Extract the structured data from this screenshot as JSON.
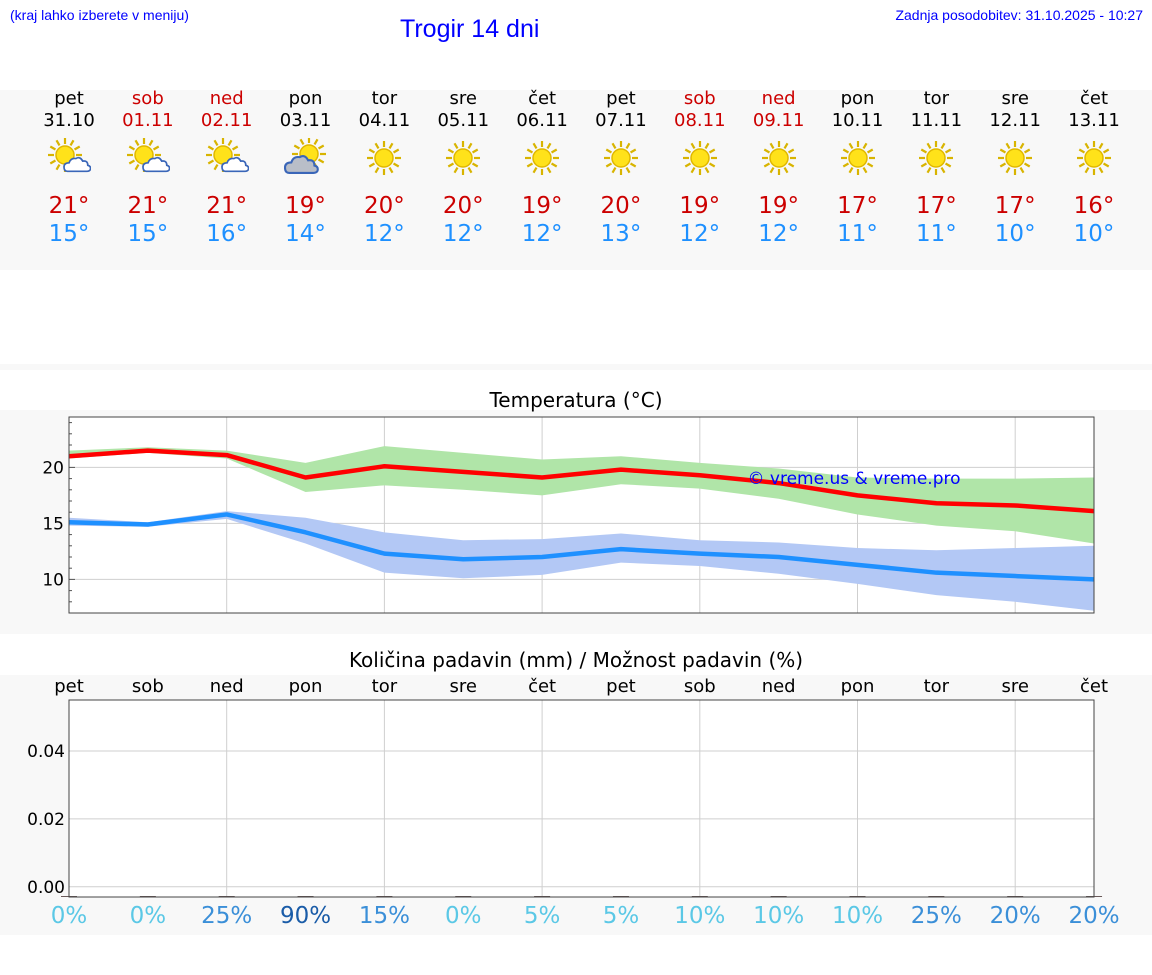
{
  "header": {
    "menu_hint": "(kraj lahko izberete v meniju)",
    "title": "Trogir 14 dni",
    "updated": "Zadnja posodobitev: 31.10.2025 - 10:27"
  },
  "days": [
    {
      "name": "pet",
      "date": "31.10",
      "weekend": false,
      "icon": "sun-cloud-icon",
      "max": "21°",
      "min": "15°"
    },
    {
      "name": "sob",
      "date": "01.11",
      "weekend": true,
      "icon": "sun-cloud-icon",
      "max": "21°",
      "min": "15°"
    },
    {
      "name": "ned",
      "date": "02.11",
      "weekend": true,
      "icon": "sun-cloud-icon",
      "max": "21°",
      "min": "16°"
    },
    {
      "name": "pon",
      "date": "03.11",
      "weekend": false,
      "icon": "cloud-sun-icon",
      "max": "19°",
      "min": "14°"
    },
    {
      "name": "tor",
      "date": "04.11",
      "weekend": false,
      "icon": "sun-icon",
      "max": "20°",
      "min": "12°"
    },
    {
      "name": "sre",
      "date": "05.11",
      "weekend": false,
      "icon": "sun-icon",
      "max": "20°",
      "min": "12°"
    },
    {
      "name": "čet",
      "date": "06.11",
      "weekend": false,
      "icon": "sun-icon",
      "max": "19°",
      "min": "12°"
    },
    {
      "name": "pet",
      "date": "07.11",
      "weekend": false,
      "icon": "sun-icon",
      "max": "20°",
      "min": "13°"
    },
    {
      "name": "sob",
      "date": "08.11",
      "weekend": true,
      "icon": "sun-icon",
      "max": "19°",
      "min": "12°"
    },
    {
      "name": "ned",
      "date": "09.11",
      "weekend": true,
      "icon": "sun-icon",
      "max": "19°",
      "min": "12°"
    },
    {
      "name": "pon",
      "date": "10.11",
      "weekend": false,
      "icon": "sun-icon",
      "max": "17°",
      "min": "11°"
    },
    {
      "name": "tor",
      "date": "11.11",
      "weekend": false,
      "icon": "sun-icon",
      "max": "17°",
      "min": "11°"
    },
    {
      "name": "sre",
      "date": "12.11",
      "weekend": false,
      "icon": "sun-icon",
      "max": "17°",
      "min": "10°"
    },
    {
      "name": "čet",
      "date": "13.11",
      "weekend": false,
      "icon": "sun-icon",
      "max": "16°",
      "min": "10°"
    }
  ],
  "colors": {
    "max_line": "#ff0000",
    "max_band": "#b0e5a8",
    "min_line": "#1e90ff",
    "min_band": "#b3c8f5",
    "weekend": "#cc0000",
    "prob_low": "#5bc8e6",
    "prob_mid": "#3b8fd8",
    "prob_high": "#1a5ca8"
  },
  "chart_data": [
    {
      "type": "line",
      "title": "Temperatura (°C)",
      "watermark": "© vreme.us & vreme.pro",
      "ylim": [
        7,
        24.5
      ],
      "yticks": [
        "10",
        "15",
        "20"
      ],
      "yticks_values": [
        10,
        15,
        20
      ],
      "x": [
        0,
        1,
        2,
        3,
        4,
        5,
        6,
        7,
        8,
        9,
        10,
        11,
        12,
        13
      ],
      "series": [
        {
          "name": "max",
          "values": [
            21.0,
            21.5,
            21.1,
            19.1,
            20.1,
            19.6,
            19.1,
            19.8,
            19.3,
            18.6,
            17.5,
            16.8,
            16.6,
            16.1
          ],
          "band_low": [
            20.8,
            21.3,
            20.8,
            17.8,
            18.4,
            18.0,
            17.5,
            18.5,
            18.1,
            17.2,
            15.8,
            14.8,
            14.3,
            13.2
          ],
          "band_high": [
            21.5,
            21.8,
            21.5,
            20.4,
            21.9,
            21.3,
            20.7,
            21.0,
            20.4,
            19.9,
            19.1,
            19.0,
            19.0,
            19.1
          ]
        },
        {
          "name": "min",
          "values": [
            15.1,
            14.9,
            15.8,
            14.2,
            12.3,
            11.8,
            12.0,
            12.7,
            12.3,
            12.0,
            11.3,
            10.6,
            10.3,
            10.0
          ],
          "band_low": [
            14.8,
            14.7,
            15.4,
            13.2,
            10.6,
            10.1,
            10.4,
            11.5,
            11.2,
            10.5,
            9.6,
            8.6,
            8.0,
            7.2
          ],
          "band_high": [
            15.5,
            15.1,
            16.1,
            15.5,
            14.2,
            13.5,
            13.6,
            14.1,
            13.5,
            13.3,
            12.8,
            12.6,
            12.8,
            13.0
          ]
        }
      ]
    },
    {
      "type": "bar",
      "title": "Količina padavin (mm) / Možnost padavin (%)",
      "categories": [
        "pet",
        "sob",
        "ned",
        "pon",
        "tor",
        "sre",
        "čet",
        "pet",
        "sob",
        "ned",
        "pon",
        "tor",
        "sre",
        "čet"
      ],
      "values": [
        0,
        0,
        0,
        0,
        0,
        0,
        0,
        0,
        0,
        0,
        0,
        0,
        0,
        0
      ],
      "ylim": [
        -0.003,
        0.055
      ],
      "yticks": [
        "0.00",
        "0.02",
        "0.04"
      ],
      "yticks_values": [
        0,
        0.02,
        0.04
      ],
      "probability": [
        "0%",
        "0%",
        "25%",
        "90%",
        "15%",
        "0%",
        "5%",
        "5%",
        "10%",
        "10%",
        "10%",
        "25%",
        "20%",
        "20%"
      ],
      "probability_values": [
        0,
        0,
        25,
        90,
        15,
        0,
        5,
        5,
        10,
        10,
        10,
        25,
        20,
        20
      ]
    }
  ]
}
